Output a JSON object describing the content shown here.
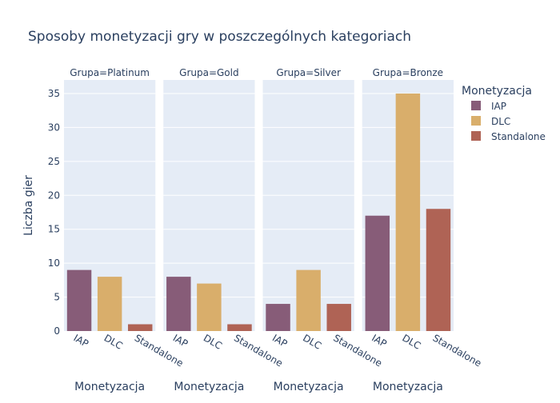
{
  "chart_data": {
    "type": "bar",
    "title": "Sposoby monetyzacji gry w poszczególnych kategoriach",
    "ylabel": "Liczba gier",
    "ylim": [
      0,
      37
    ],
    "yticks": [
      0,
      5,
      10,
      15,
      20,
      25,
      30,
      35
    ],
    "grid": true,
    "legend": {
      "title": "Monetyzacja",
      "placement": "top-right",
      "items": [
        {
          "name": "IAP",
          "color": "#875c78"
        },
        {
          "name": "DLC",
          "color": "#d9ae6b"
        },
        {
          "name": "Standalone",
          "color": "#af6355"
        }
      ]
    },
    "categories": [
      "IAP",
      "DLC",
      "Standalone"
    ],
    "facets": [
      {
        "title": "Grupa=Platinum",
        "xlabel": "Monetyzacja",
        "values": [
          9,
          8,
          1
        ]
      },
      {
        "title": "Grupa=Gold",
        "xlabel": "Monetyzacja",
        "values": [
          8,
          7,
          1
        ]
      },
      {
        "title": "Grupa=Silver",
        "xlabel": "Monetyzacja",
        "values": [
          4,
          9,
          4
        ]
      },
      {
        "title": "Grupa=Bronze",
        "xlabel": "Monetyzacja",
        "values": [
          17,
          35,
          18
        ]
      }
    ]
  }
}
